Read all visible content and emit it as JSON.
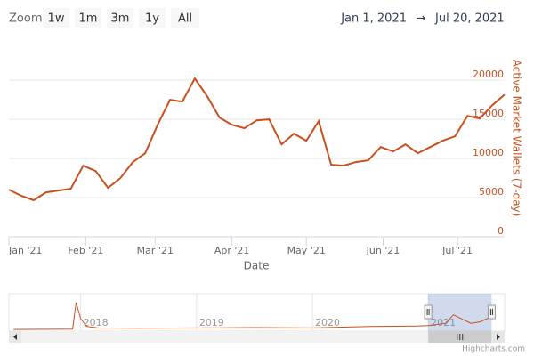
{
  "chart_data": {
    "type": "line",
    "zoom_label": "Zoom",
    "zoom_buttons": [
      "1w",
      "1m",
      "3m",
      "1y",
      "All"
    ],
    "range_from": "Jan 1, 2021",
    "range_arrow": "→",
    "range_to": "Jul 20, 2021",
    "x_label": "Date",
    "y_label": "Active Market Wallets (7-day)",
    "credits": "Highcharts.com",
    "xlim": [
      "2021-01-01",
      "2021-07-20"
    ],
    "xticks": [
      {
        "value": "2021-01-01",
        "label": "Jan '21"
      },
      {
        "value": "2021-02-01",
        "label": "Feb '21"
      },
      {
        "value": "2021-03-01",
        "label": "Mar '21"
      },
      {
        "value": "2021-04-01",
        "label": "Apr '21"
      },
      {
        "value": "2021-05-01",
        "label": "May '21"
      },
      {
        "value": "2021-06-01",
        "label": "Jun '21"
      },
      {
        "value": "2021-07-01",
        "label": "Jul '21"
      }
    ],
    "ylim": [
      0,
      24000
    ],
    "yticks": [
      0,
      5000,
      10000,
      15000,
      20000
    ],
    "grid": true,
    "series": [
      {
        "color": "#c8501e",
        "x": [
          "2021-01-01",
          "2021-01-06",
          "2021-01-11",
          "2021-01-16",
          "2021-01-21",
          "2021-01-26",
          "2021-01-31",
          "2021-02-05",
          "2021-02-10",
          "2021-02-15",
          "2021-02-20",
          "2021-02-25",
          "2021-03-02",
          "2021-03-07",
          "2021-03-12",
          "2021-03-17",
          "2021-03-22",
          "2021-03-27",
          "2021-04-01",
          "2021-04-06",
          "2021-04-11",
          "2021-04-16",
          "2021-04-21",
          "2021-04-26",
          "2021-05-01",
          "2021-05-06",
          "2021-05-11",
          "2021-05-16",
          "2021-05-21",
          "2021-05-26",
          "2021-05-31",
          "2021-06-05",
          "2021-06-10",
          "2021-06-15",
          "2021-06-20",
          "2021-06-25",
          "2021-06-30",
          "2021-07-05",
          "2021-07-10",
          "2021-07-15",
          "2021-07-20"
        ],
        "values": [
          6020,
          5230,
          4660,
          5680,
          5900,
          6140,
          9090,
          8400,
          6250,
          7500,
          9540,
          10680,
          14310,
          17500,
          17270,
          20220,
          17950,
          15220,
          14310,
          13860,
          14880,
          15000,
          11810,
          13180,
          12270,
          14770,
          9200,
          9090,
          9540,
          9770,
          11470,
          10900,
          11810,
          10680,
          11470,
          12270,
          12840,
          15450,
          15110,
          16810,
          18180
        ]
      }
    ],
    "navigator": {
      "xlim": [
        2017.38,
        2021.66
      ],
      "ylim": [
        0,
        45000
      ],
      "xticks": [
        2018,
        2019,
        2020,
        2021
      ],
      "color": "#c8501e",
      "x": [
        2017.42,
        2017.93,
        2017.96,
        2018.0,
        2018.05,
        2018.15,
        2018.5,
        2019.0,
        2019.5,
        2020.0,
        2020.5,
        2020.9,
        2021.0,
        2021.15,
        2021.2,
        2021.22,
        2021.3,
        2021.37,
        2021.45,
        2021.55
      ],
      "values": [
        1000,
        1500,
        36000,
        15000,
        5000,
        3000,
        2500,
        3000,
        3500,
        3000,
        5000,
        5500,
        6000,
        9000,
        17000,
        20000,
        14000,
        9000,
        11000,
        18000
      ]
    }
  }
}
